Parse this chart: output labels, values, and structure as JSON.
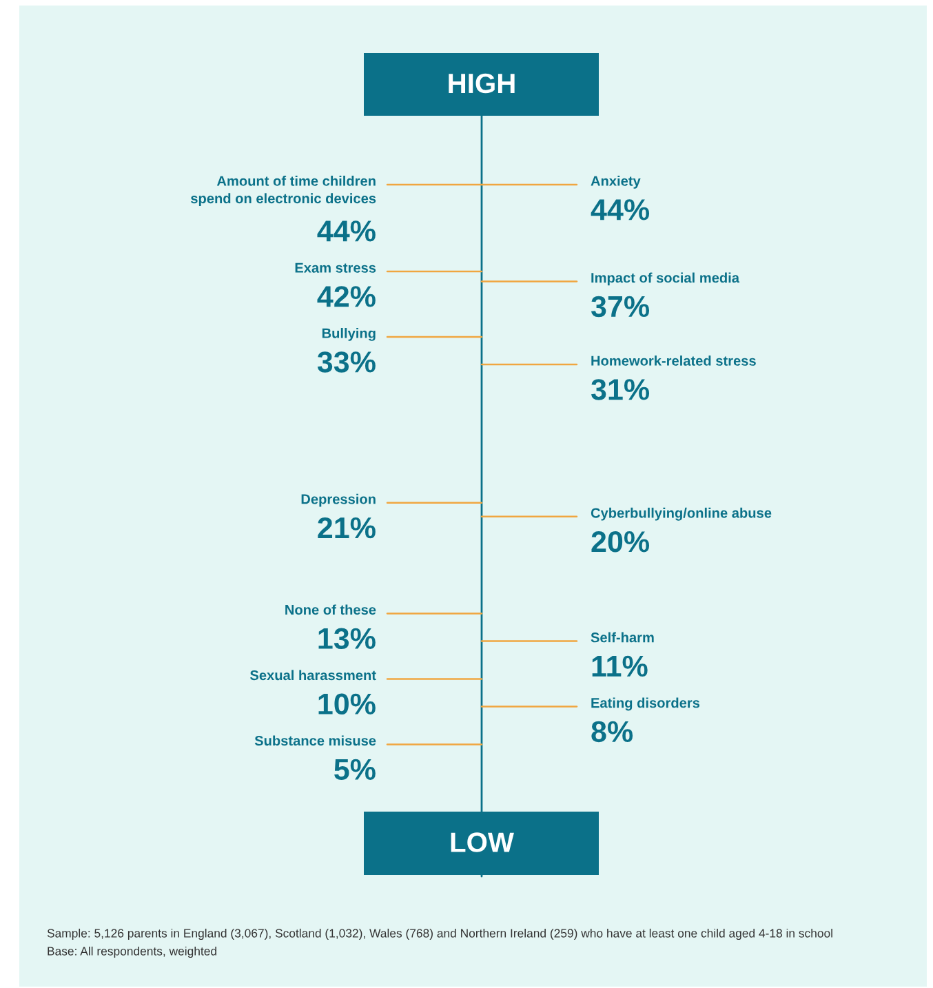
{
  "chart_data": {
    "type": "other",
    "categories": [
      "Amount of time children\nspend on electronic devices",
      "Anxiety",
      "Exam stress",
      "Impact of social media",
      "Bullying",
      "Homework-related stress",
      "Depression",
      "Cyberbullying/online abuse",
      "None of these",
      "Self-harm",
      "Sexual harassment",
      "Eating disorders",
      "Substance misuse"
    ],
    "values": [
      44,
      44,
      42,
      37,
      33,
      31,
      21,
      20,
      13,
      11,
      10,
      8,
      5
    ],
    "value_labels": [
      "44%",
      "44%",
      "42%",
      "37%",
      "33%",
      "31%",
      "21%",
      "20%",
      "13%",
      "11%",
      "10%",
      "8%",
      "5%"
    ],
    "color": "#0b7189",
    "annotations": [
      "HIGH",
      "LOW",
      "Sample: 5,126 parents in England (3,067), Scotland (1,032), Wales (768) and Northern Ireland (259) who have at least one child aged 4-18 in school",
      "Base: All respondents, weighted"
    ]
  }
}
